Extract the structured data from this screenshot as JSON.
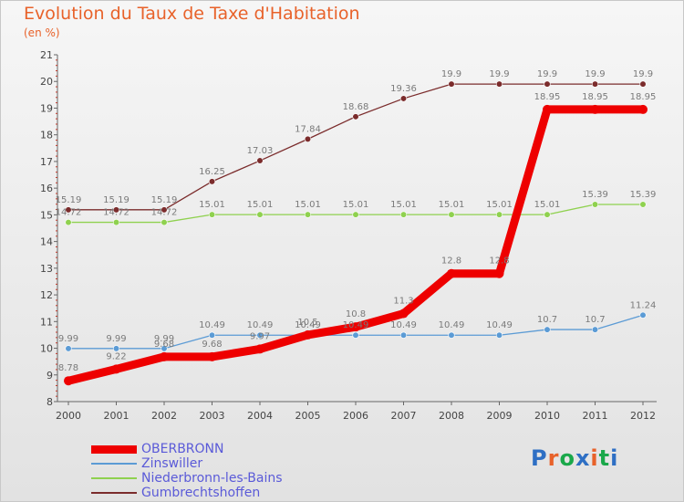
{
  "header": {
    "title": "Evolution du Taux de Taxe d'Habitation",
    "subtitle": "(en %)"
  },
  "logo": {
    "text": "Proxiti",
    "colors": [
      "#2e6fc4",
      "#e8622a",
      "#1aa84a",
      "#2e6fc4",
      "#e8622a",
      "#1aa84a",
      "#2e6fc4"
    ]
  },
  "chart_data": {
    "type": "line",
    "title": "Evolution du Taux de Taxe d'Habitation",
    "subtitle": "(en %)",
    "xlabel": "",
    "ylabel": "",
    "x": [
      2000,
      2001,
      2002,
      2003,
      2004,
      2005,
      2006,
      2007,
      2008,
      2009,
      2010,
      2011,
      2012
    ],
    "ylim": [
      8,
      21
    ],
    "yticks": [
      8,
      9,
      10,
      11,
      12,
      13,
      14,
      15,
      16,
      17,
      18,
      19,
      20,
      21
    ],
    "grid": false,
    "legend_position": "bottom-left",
    "series": [
      {
        "name": "OBERBRONN",
        "color": "#ee0000",
        "thick": true,
        "values": [
          8.78,
          9.22,
          9.68,
          9.68,
          9.97,
          10.5,
          10.8,
          11.3,
          12.8,
          12.8,
          18.95,
          18.95,
          18.95
        ],
        "labels": [
          "8.78",
          "9.22",
          "9.68",
          "9.68",
          "9.97",
          "10.5",
          "10.8",
          "11.3",
          "12.8",
          "12.8",
          "18.95",
          "18.95",
          "18.95"
        ]
      },
      {
        "name": "Zinswiller",
        "color": "#5b9bd5",
        "thick": false,
        "values": [
          9.99,
          9.99,
          9.99,
          10.49,
          10.49,
          10.49,
          10.49,
          10.49,
          10.49,
          10.49,
          10.7,
          10.7,
          11.24
        ],
        "labels": [
          "9.99",
          "9.99",
          "9.99",
          "10.49",
          "10.49",
          "10.49",
          "10.49",
          "10.49",
          "10.49",
          "10.49",
          "10.7",
          "10.7",
          "11.24"
        ]
      },
      {
        "name": "Niederbronn-les-Bains",
        "color": "#8fd14f",
        "thick": false,
        "values": [
          14.72,
          14.72,
          14.72,
          15.01,
          15.01,
          15.01,
          15.01,
          15.01,
          15.01,
          15.01,
          15.01,
          15.39,
          15.39
        ],
        "labels": [
          "14.72",
          "14.72",
          "14.72",
          "15.01",
          "15.01",
          "15.01",
          "15.01",
          "15.01",
          "15.01",
          "15.01",
          "15.01",
          "15.39",
          "15.39"
        ]
      },
      {
        "name": "Gumbrechtshoffen",
        "color": "#7b2c2c",
        "thick": false,
        "values": [
          15.19,
          15.19,
          15.19,
          16.25,
          17.03,
          17.84,
          18.68,
          19.36,
          19.9,
          19.9,
          19.9,
          19.9,
          19.9
        ],
        "labels": [
          "15.19",
          "15.19",
          "15.19",
          "16.25",
          "17.03",
          "17.84",
          "18.68",
          "19.36",
          "19.9",
          "19.9",
          "19.9",
          "19.9",
          "19.9"
        ]
      }
    ]
  }
}
